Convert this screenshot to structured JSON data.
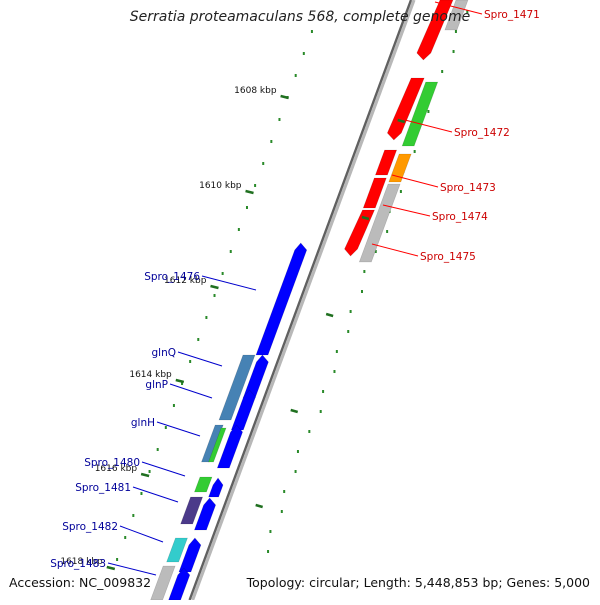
{
  "title": "Serratia proteamaculans 568, complete genome",
  "accession": "Accession: NC_009832",
  "topology": "Topology: circular; Length: 5,448,853 bp; Genes: 5,000",
  "ticks": [
    "1608 kbp",
    "1610 kbp",
    "1612 kbp",
    "1614 kbp",
    "1616 kbp",
    "1618 kbp"
  ],
  "genes_forward": [
    {
      "label": "Spro_1471",
      "color": "#ff0000"
    },
    {
      "label": "Spro_1472",
      "color": "#ff0000"
    },
    {
      "label": "Spro_1473",
      "color": "#ff0000"
    },
    {
      "label": "Spro_1474",
      "color": "#ff0000"
    },
    {
      "label": "Spro_1475",
      "color": "#ff0000"
    }
  ],
  "genes_reverse": [
    {
      "label": "Spro_1476",
      "color": "#0000cc"
    },
    {
      "label": "glnQ",
      "color": "#0000cc"
    },
    {
      "label": "glnP",
      "color": "#0000cc"
    },
    {
      "label": "glnH",
      "color": "#0000cc"
    },
    {
      "label": "Spro_1480",
      "color": "#0000cc"
    },
    {
      "label": "Spro_1481",
      "color": "#0000cc"
    },
    {
      "label": "Spro_1482",
      "color": "#0000cc"
    },
    {
      "label": "Spro_1483",
      "color": "#0000cc"
    }
  ],
  "colors": {
    "forward_gene": "#ff0000",
    "reverse_gene": "#0000ff",
    "backbone": "#808080",
    "dots": "#2a8a2a",
    "cog_green": "#33cc33",
    "cog_orange": "#ff9900",
    "cog_gray": "#bbbbbb",
    "cog_steelblue": "#4682b4",
    "cog_cyan": "#33cccc",
    "cog_purple": "#4b3a8a"
  }
}
